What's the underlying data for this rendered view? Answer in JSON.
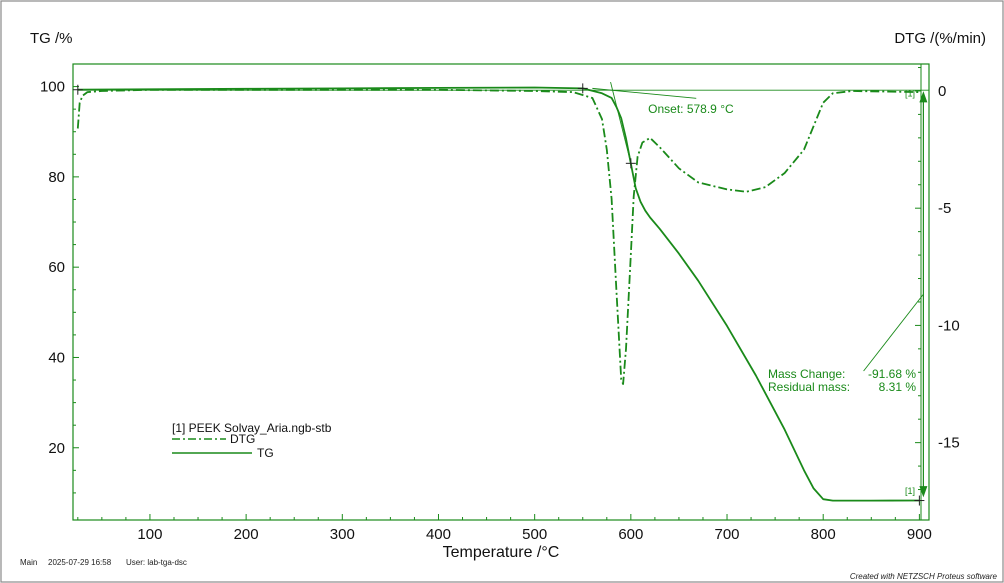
{
  "chart_data": {
    "type": "line",
    "xlabel": "Temperature /°C",
    "ylabel_left": "TG /%",
    "ylabel_right": "DTG /(%/min)",
    "xlim": [
      20,
      910
    ],
    "ylim_left": [
      4,
      105
    ],
    "ylim_right": [
      -18.3,
      1.15
    ],
    "x_ticks": [
      100,
      200,
      300,
      400,
      500,
      600,
      700,
      800,
      900
    ],
    "y_ticks_left": [
      20,
      40,
      60,
      80,
      100
    ],
    "y_ticks_right": [
      0,
      -5,
      -10,
      -15
    ],
    "color": "#1a8a1a",
    "series": [
      {
        "name": "TG",
        "axis": "left",
        "style": "solid",
        "x": [
          25,
          100,
          200,
          300,
          400,
          500,
          550,
          570,
          580,
          585,
          590,
          595,
          600,
          605,
          610,
          615,
          620,
          630,
          650,
          670,
          700,
          730,
          760,
          780,
          790,
          800,
          810,
          850,
          900
        ],
        "y": [
          99.3,
          99.4,
          99.5,
          99.6,
          99.7,
          99.8,
          99.6,
          98.5,
          97.5,
          95.5,
          93,
          88.5,
          83,
          77.5,
          74.5,
          72.5,
          71,
          68.5,
          63,
          57,
          47,
          36,
          24,
          15,
          11,
          8.6,
          8.3,
          8.3,
          8.31
        ]
      },
      {
        "name": "DTG",
        "axis": "right",
        "style": "dashdot",
        "x": [
          25,
          27,
          30,
          35,
          50,
          100,
          200,
          300,
          400,
          500,
          540,
          560,
          570,
          575,
          580,
          585,
          590,
          592,
          595,
          600,
          603,
          607,
          612,
          620,
          630,
          650,
          670,
          700,
          720,
          740,
          760,
          780,
          790,
          800,
          810,
          830,
          900
        ],
        "y": [
          -1.6,
          -0.5,
          -0.2,
          -0.05,
          0,
          0.05,
          0.05,
          0.05,
          0.05,
          0,
          -0.05,
          -0.3,
          -1.2,
          -2.5,
          -4.6,
          -8.5,
          -12.3,
          -12.5,
          -11,
          -7,
          -4.5,
          -2.8,
          -2.2,
          -2.0,
          -2.4,
          -3.3,
          -3.9,
          -4.2,
          -4.3,
          -4.1,
          -3.5,
          -2.5,
          -1.5,
          -0.5,
          -0.1,
          0,
          -0.05
        ]
      }
    ],
    "legend": {
      "title": "[1]  PEEK Solvay_Aria.ngb-stb",
      "items": [
        {
          "name": "DTG",
          "style": "dashdot"
        },
        {
          "name": "TG",
          "style": "solid"
        }
      ],
      "placement": "bottom-left"
    },
    "annotations": {
      "onset": "Onset: 578.9 °C",
      "mass_change_label": "Mass Change:",
      "mass_change_value": "-91.68 %",
      "residual_label": "Residual mass:",
      "residual_value": "8.31 %",
      "curve_tag_top": "[1]",
      "curve_tag_bottom": "[1]"
    },
    "grid": false
  },
  "footer": {
    "main": "Main",
    "datetime": "2025-07-29 16:58",
    "user": "User: lab-tga-dsc",
    "credit": "Created with NETZSCH Proteus software"
  }
}
